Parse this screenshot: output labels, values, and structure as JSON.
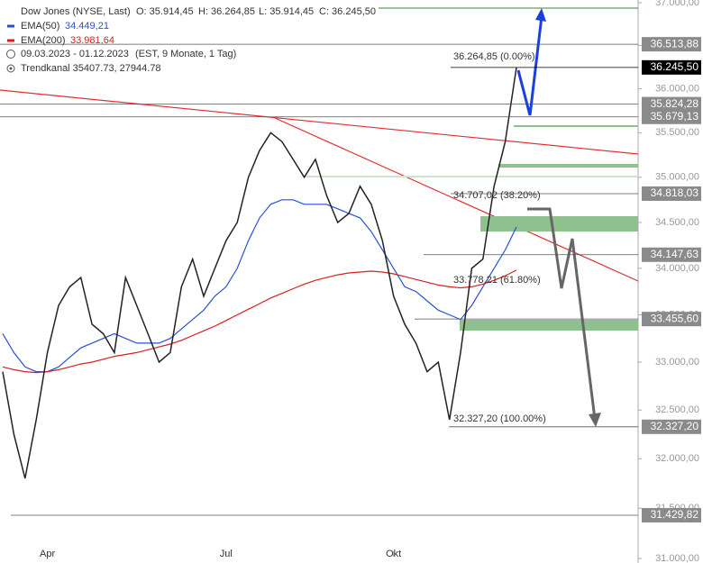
{
  "chart_data": {
    "type": "line",
    "title": "Dow Jones (NYSE, Last)",
    "ohlc": [
      "O: 35.914,45",
      "H: 36.264,85",
      "L: 35.914,45",
      "C: 36.245,50"
    ],
    "period": "09.03.2023 - 01.12.2023",
    "period_note": "(EST, 9 Monate, 1 Tag)",
    "channel": "Trendkanal  35407.73, 27944.78",
    "log_scale": true,
    "color": "#222222",
    "categories": [
      null,
      null,
      null,
      null,
      "Apr",
      null,
      null,
      null,
      null,
      null,
      null,
      null,
      null,
      null,
      null,
      null,
      null,
      null,
      null,
      null,
      "Jul",
      null,
      null,
      null,
      null,
      null,
      null,
      null,
      null,
      null,
      null,
      null,
      null,
      null,
      null,
      "Okt",
      null,
      null,
      null,
      null,
      null,
      null,
      null,
      null,
      null,
      null,
      null
    ],
    "values": [
      32900,
      32250,
      31800,
      32400,
      33100,
      33600,
      33800,
      33900,
      33400,
      33300,
      33100,
      33900,
      33600,
      33300,
      33000,
      33100,
      33800,
      34100,
      33700,
      34000,
      34300,
      34500,
      35000,
      35300,
      35500,
      35400,
      35200,
      35000,
      35200,
      34800,
      34500,
      34600,
      34900,
      34700,
      34300,
      33700,
      33400,
      33200,
      32900,
      33000,
      32400,
      33100,
      34000,
      34100,
      34900,
      35400,
      36245.5
    ],
    "series": [
      {
        "name": "EMA(50)",
        "value_label": "34.449,21",
        "color": "#2a4fd6",
        "values": [
          33300,
          33100,
          32950,
          32900,
          32900,
          32950,
          33050,
          33150,
          33200,
          33250,
          33300,
          33250,
          33200,
          33200,
          33200,
          33250,
          33350,
          33450,
          33550,
          33700,
          33800,
          34000,
          34300,
          34550,
          34700,
          34750,
          34750,
          34700,
          34700,
          34700,
          34650,
          34600,
          34550,
          34400,
          34200,
          34000,
          33800,
          33750,
          33650,
          33550,
          33500,
          33450,
          33600,
          33800,
          34000,
          34200,
          34450
        ]
      },
      {
        "name": "EMA(200)",
        "value_label": "33.981,64",
        "color": "#d62020",
        "values": [
          32950,
          32920,
          32900,
          32890,
          32900,
          32920,
          32950,
          32980,
          33000,
          33030,
          33060,
          33080,
          33100,
          33130,
          33160,
          33190,
          33230,
          33280,
          33330,
          33380,
          33440,
          33500,
          33560,
          33620,
          33680,
          33730,
          33780,
          33830,
          33870,
          33900,
          33930,
          33950,
          33960,
          33970,
          33960,
          33940,
          33910,
          33880,
          33850,
          33820,
          33800,
          33790,
          33800,
          33830,
          33870,
          33920,
          33980
        ]
      }
    ],
    "levels": [
      {
        "value": 36513.88,
        "label": "36.513,88"
      },
      {
        "value": 36245.5,
        "label": "36.245,50"
      },
      {
        "value": 35824.28,
        "label": "35.824,28"
      },
      {
        "value": 35679.13,
        "label": "35.679,13"
      },
      {
        "value": 34818.03,
        "label": "34.818,03"
      },
      {
        "value": 34147.63,
        "label": "34.147,63"
      },
      {
        "value": 33455.6,
        "label": "33.455,60"
      },
      {
        "value": 32327.2,
        "label": "32.327,20"
      },
      {
        "value": 31429.82,
        "label": "31.429,82"
      }
    ],
    "annotations": [
      "36.264,85 (0.00%)",
      "34.707,02 (38.20%)",
      "33.778,21 (61.80%)",
      "32.327,20 (100.00%)"
    ],
    "ylim": [
      31000,
      37000
    ],
    "yticks": [
      {
        "value": 31000,
        "label": "31.000,00"
      },
      {
        "value": 31500,
        "label": "31.500,00"
      },
      {
        "value": 32000,
        "label": "32.000,00"
      },
      {
        "value": 32500,
        "label": "32.500,00"
      },
      {
        "value": 33000,
        "label": "33.000,00"
      },
      {
        "value": 33500,
        "label": "33.500,00"
      },
      {
        "value": 34000,
        "label": "34.000,00"
      },
      {
        "value": 34500,
        "label": "34.500,00"
      },
      {
        "value": 35000,
        "label": "35.000,00"
      },
      {
        "value": 35500,
        "label": "35.500,00"
      },
      {
        "value": 36000,
        "label": "36.000,00"
      },
      {
        "value": 36500,
        "label": "36.500,00"
      },
      {
        "value": 37000,
        "label": "37.000,00"
      }
    ]
  }
}
